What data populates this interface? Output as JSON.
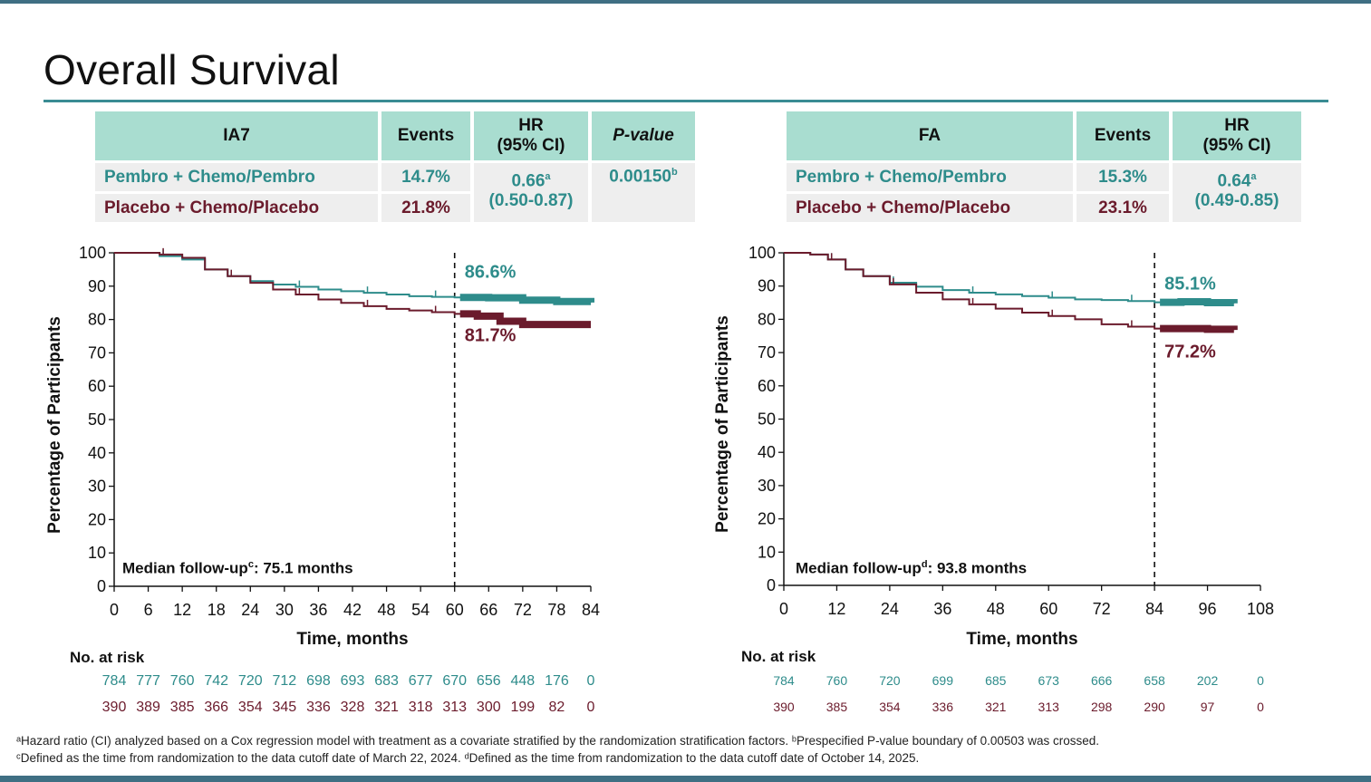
{
  "title": "Overall Survival",
  "colors": {
    "pembro": "#2e8c8b",
    "placebo": "#6b1b2c",
    "header_bg": "#a9ddd0",
    "accent": "#3a8c93"
  },
  "left_table": {
    "headers": [
      "IA7",
      "Events",
      "HR\n(95% CI)",
      "P-value"
    ],
    "rows": [
      {
        "label": "Pembro + Chemo/Pembro",
        "events": "14.7%"
      },
      {
        "label": "Placebo + Chemo/Placebo",
        "events": "21.8%"
      }
    ],
    "hr": "0.66",
    "hr_sup": "a",
    "ci": "(0.50-0.87)",
    "pvalue": "0.00150",
    "pvalue_sup": "b"
  },
  "right_table": {
    "headers": [
      "FA",
      "Events",
      "HR\n(95% CI)"
    ],
    "rows": [
      {
        "label": "Pembro + Chemo/Pembro",
        "events": "15.3%"
      },
      {
        "label": "Placebo + Chemo/Placebo",
        "events": "23.1%"
      }
    ],
    "hr": "0.64",
    "hr_sup": "a",
    "ci": "(0.49-0.85)"
  },
  "left_note": {
    "text": "Median follow-up",
    "sup": "c",
    "value": ": 75.1 months"
  },
  "right_note": {
    "text": "Median follow-up",
    "sup": "d",
    "value": ": 93.8 months"
  },
  "risk_title": "No. at risk",
  "left_risk": {
    "pembro": [
      "784",
      "777",
      "760",
      "742",
      "720",
      "712",
      "698",
      "693",
      "683",
      "677",
      "670",
      "656",
      "448",
      "176",
      "0"
    ],
    "placebo": [
      "390",
      "389",
      "385",
      "366",
      "354",
      "345",
      "336",
      "328",
      "321",
      "318",
      "313",
      "300",
      "199",
      "82",
      "0"
    ]
  },
  "right_risk": {
    "pembro": [
      "784",
      "760",
      "720",
      "699",
      "685",
      "673",
      "666",
      "658",
      "202",
      "0"
    ],
    "placebo": [
      "390",
      "385",
      "354",
      "336",
      "321",
      "313",
      "298",
      "290",
      "97",
      "0"
    ]
  },
  "footnotes": [
    "ᵃHazard ratio (CI) analyzed based on a Cox regression model with treatment as a covariate stratified by the randomization stratification factors. ᵇPrespecified P-value boundary of 0.00503 was crossed.",
    "ᶜDefined as the time from randomization to the data cutoff date of March 22, 2024. ᵈDefined as the time from randomization to the data cutoff date of October 14, 2025."
  ],
  "chart_data": [
    {
      "type": "line",
      "xlabel": "Time, months",
      "ylabel": "Percentage of Participants",
      "xlim": [
        0,
        84
      ],
      "ylim": [
        0,
        100
      ],
      "xticks": [
        0,
        6,
        12,
        18,
        24,
        30,
        36,
        42,
        48,
        54,
        60,
        66,
        72,
        78,
        84
      ],
      "yticks": [
        0,
        10,
        20,
        30,
        40,
        50,
        60,
        70,
        80,
        90,
        100
      ],
      "reference_line_x": 60,
      "series": [
        {
          "key": "pembro",
          "points": [
            [
              0,
              100
            ],
            [
              4,
              100
            ],
            [
              8,
              99
            ],
            [
              12,
              98
            ],
            [
              16,
              95
            ],
            [
              20,
              93
            ],
            [
              24,
              91.5
            ],
            [
              28,
              90.5
            ],
            [
              32,
              89.8
            ],
            [
              36,
              89
            ],
            [
              40,
              88.5
            ],
            [
              44,
              88
            ],
            [
              48,
              87.5
            ],
            [
              52,
              87
            ],
            [
              56,
              86.8
            ],
            [
              60,
              86.6
            ],
            [
              66,
              86.5
            ],
            [
              72,
              85.8
            ],
            [
              78,
              85.4
            ],
            [
              84,
              85.1
            ]
          ],
          "end_label": "86.6%"
        },
        {
          "key": "placebo",
          "points": [
            [
              0,
              100
            ],
            [
              4,
              100
            ],
            [
              8,
              99.5
            ],
            [
              12,
              98.5
            ],
            [
              16,
              95
            ],
            [
              20,
              93
            ],
            [
              24,
              91
            ],
            [
              28,
              89
            ],
            [
              32,
              87.5
            ],
            [
              36,
              86
            ],
            [
              40,
              85
            ],
            [
              44,
              84
            ],
            [
              48,
              83.2
            ],
            [
              52,
              82.7
            ],
            [
              56,
              82.2
            ],
            [
              60,
              81.7
            ],
            [
              64,
              81
            ],
            [
              68,
              79.5
            ],
            [
              72,
              78.5
            ],
            [
              78,
              78.5
            ],
            [
              84,
              78.5
            ]
          ],
          "end_label": "81.7%"
        }
      ]
    },
    {
      "type": "line",
      "xlabel": "Time, months",
      "ylabel": "Percentage of Participants",
      "xlim": [
        0,
        108
      ],
      "ylim": [
        0,
        100
      ],
      "xticks": [
        0,
        12,
        24,
        36,
        48,
        60,
        72,
        84,
        96,
        108
      ],
      "yticks": [
        0,
        10,
        20,
        30,
        40,
        50,
        60,
        70,
        80,
        90,
        100
      ],
      "reference_line_x": 84,
      "series": [
        {
          "key": "pembro",
          "points": [
            [
              0,
              100
            ],
            [
              6,
              99.5
            ],
            [
              10,
              98
            ],
            [
              14,
              95
            ],
            [
              18,
              93
            ],
            [
              24,
              91
            ],
            [
              30,
              89.8
            ],
            [
              36,
              88.8
            ],
            [
              42,
              88
            ],
            [
              48,
              87.5
            ],
            [
              54,
              87
            ],
            [
              60,
              86.5
            ],
            [
              66,
              86
            ],
            [
              72,
              85.8
            ],
            [
              78,
              85.5
            ],
            [
              84,
              85.1
            ],
            [
              90,
              85.3
            ],
            [
              96,
              85
            ],
            [
              102,
              84.8
            ]
          ],
          "end_label": "85.1%"
        },
        {
          "key": "placebo",
          "points": [
            [
              0,
              100
            ],
            [
              6,
              99.5
            ],
            [
              10,
              98
            ],
            [
              14,
              95
            ],
            [
              18,
              93
            ],
            [
              24,
              90.5
            ],
            [
              30,
              88
            ],
            [
              36,
              86
            ],
            [
              42,
              84.5
            ],
            [
              48,
              83.2
            ],
            [
              54,
              82
            ],
            [
              60,
              81
            ],
            [
              66,
              80
            ],
            [
              72,
              78.5
            ],
            [
              78,
              77.8
            ],
            [
              84,
              77.2
            ],
            [
              90,
              77.2
            ],
            [
              96,
              77
            ],
            [
              102,
              76.8
            ]
          ],
          "end_label": "77.2%"
        }
      ]
    }
  ]
}
